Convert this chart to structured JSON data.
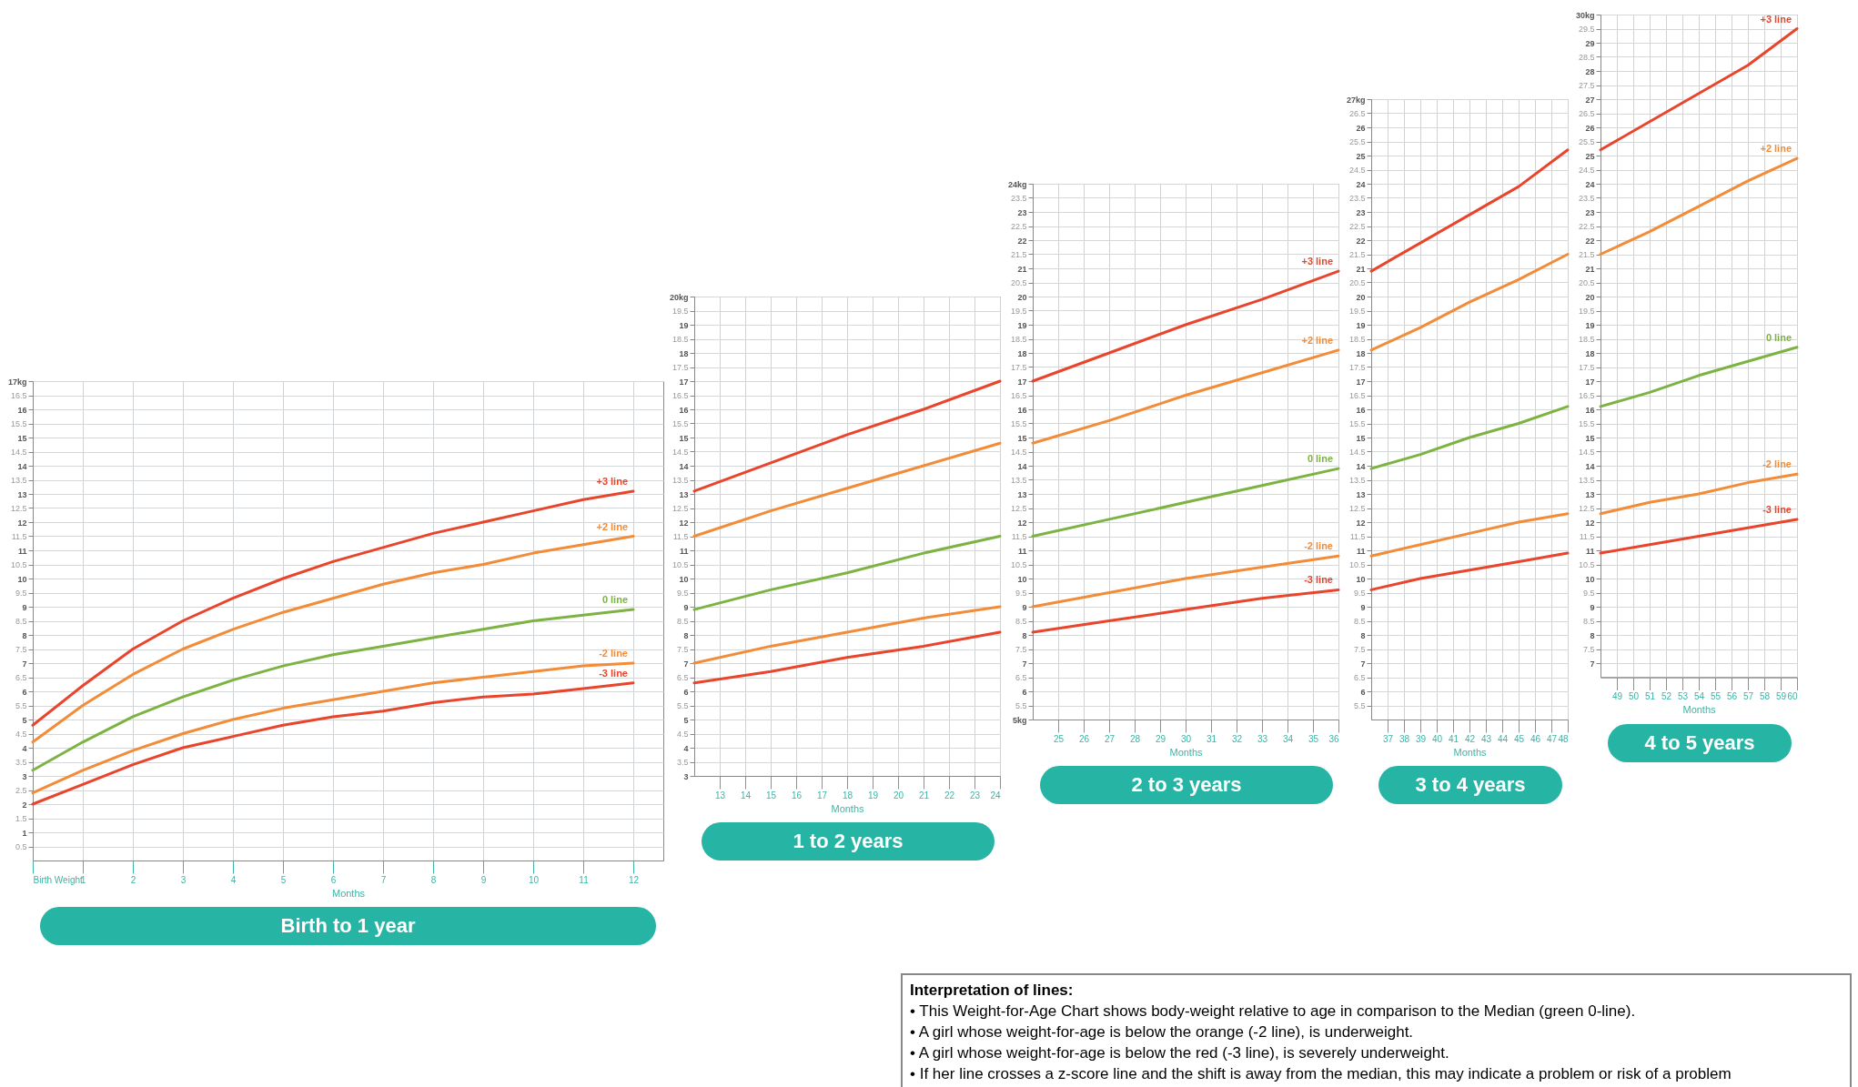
{
  "chart_data": [
    {
      "type": "line",
      "title": "Birth to 1 year",
      "xlabel": "Months",
      "grid": true,
      "line_style": "solid",
      "marker": "none",
      "legend": false,
      "x": [
        0,
        1,
        2,
        3,
        4,
        5,
        6,
        7,
        8,
        9,
        10,
        11,
        12
      ],
      "xlim": [
        0,
        12.6
      ],
      "xticks": [
        {
          "value": 0,
          "label": "Birth Weight"
        },
        1,
        2,
        3,
        4,
        5,
        6,
        7,
        8,
        9,
        10,
        11,
        12
      ],
      "ylim": [
        0,
        17
      ],
      "yticks": [
        0.5,
        1,
        1.5,
        2,
        2.5,
        3,
        3.5,
        4,
        4.5,
        5,
        5.5,
        6,
        6.5,
        7,
        7.5,
        8,
        8.5,
        9,
        9.5,
        10,
        10.5,
        11,
        11.5,
        12,
        12.5,
        13,
        13.5,
        14,
        14.5,
        15,
        15.5,
        16,
        16.5,
        {
          "value": 17,
          "label": "17kg"
        }
      ],
      "series": [
        {
          "name": "+3 line",
          "color": "#e8452c",
          "values": [
            4.8,
            6.2,
            7.5,
            8.5,
            9.3,
            10.0,
            10.6,
            11.1,
            11.6,
            12.0,
            12.4,
            12.8,
            13.1
          ]
        },
        {
          "name": "+2 line",
          "color": "#f28c38",
          "values": [
            4.2,
            5.5,
            6.6,
            7.5,
            8.2,
            8.8,
            9.3,
            9.8,
            10.2,
            10.5,
            10.9,
            11.2,
            11.5
          ]
        },
        {
          "name": "0 line",
          "color": "#7cb342",
          "values": [
            3.2,
            4.2,
            5.1,
            5.8,
            6.4,
            6.9,
            7.3,
            7.6,
            7.9,
            8.2,
            8.5,
            8.7,
            8.9
          ]
        },
        {
          "name": "-2 line",
          "color": "#f28c38",
          "values": [
            2.4,
            3.2,
            3.9,
            4.5,
            5.0,
            5.4,
            5.7,
            6.0,
            6.3,
            6.5,
            6.7,
            6.9,
            7.0
          ]
        },
        {
          "name": "-3 line",
          "color": "#e8452c",
          "values": [
            2.0,
            2.7,
            3.4,
            4.0,
            4.4,
            4.8,
            5.1,
            5.3,
            5.6,
            5.8,
            5.9,
            6.1,
            6.3
          ]
        }
      ]
    },
    {
      "type": "line",
      "title": "1 to 2 years",
      "xlabel": "Months",
      "grid": true,
      "line_style": "solid",
      "marker": "none",
      "legend": false,
      "x": [
        12,
        15,
        18,
        21,
        24
      ],
      "xlim": [
        12,
        24
      ],
      "xticks": [
        13,
        14,
        15,
        16,
        17,
        18,
        19,
        20,
        21,
        22,
        23,
        24
      ],
      "ylim": [
        3,
        20
      ],
      "yticks": [
        3,
        3.5,
        4,
        4.5,
        5,
        5.5,
        6,
        6.5,
        7,
        7.5,
        8,
        8.5,
        9,
        9.5,
        10,
        10.5,
        11,
        11.5,
        12,
        12.5,
        13,
        13.5,
        14,
        14.5,
        15,
        15.5,
        16,
        16.5,
        17,
        17.5,
        18,
        18.5,
        19,
        19.5,
        {
          "value": 20,
          "label": "20kg"
        }
      ],
      "series": [
        {
          "color": "#e8452c",
          "values": [
            13.1,
            14.1,
            15.1,
            16.0,
            17.0
          ]
        },
        {
          "color": "#f28c38",
          "values": [
            11.5,
            12.4,
            13.2,
            14.0,
            14.8
          ]
        },
        {
          "color": "#7cb342",
          "values": [
            8.9,
            9.6,
            10.2,
            10.9,
            11.5
          ]
        },
        {
          "color": "#f28c38",
          "values": [
            7.0,
            7.6,
            8.1,
            8.6,
            9.0
          ]
        },
        {
          "color": "#e8452c",
          "values": [
            6.3,
            6.7,
            7.2,
            7.6,
            8.1
          ]
        }
      ]
    },
    {
      "type": "line",
      "title": "2 to 3 years",
      "xlabel": "Months",
      "grid": true,
      "line_style": "solid",
      "marker": "none",
      "legend": false,
      "x": [
        24,
        27,
        30,
        33,
        36
      ],
      "xlim": [
        24,
        36
      ],
      "xticks": [
        25,
        26,
        27,
        28,
        29,
        30,
        31,
        32,
        33,
        34,
        35,
        36
      ],
      "ylim": [
        5,
        24
      ],
      "yticks": [
        {
          "value": 5,
          "label": "5kg"
        },
        5.5,
        6,
        6.5,
        7,
        7.5,
        8,
        8.5,
        9,
        9.5,
        10,
        10.5,
        11,
        11.5,
        12,
        12.5,
        13,
        13.5,
        14,
        14.5,
        15,
        15.5,
        16,
        16.5,
        17,
        17.5,
        18,
        18.5,
        19,
        19.5,
        20,
        20.5,
        21,
        21.5,
        22,
        22.5,
        23,
        23.5,
        {
          "value": 24,
          "label": "24kg"
        }
      ],
      "series": [
        {
          "name": "+3 line",
          "color": "#e8452c",
          "values": [
            17.0,
            18.0,
            19.0,
            19.9,
            20.9
          ]
        },
        {
          "name": "+2 line",
          "color": "#f28c38",
          "values": [
            14.8,
            15.6,
            16.5,
            17.3,
            18.1
          ]
        },
        {
          "name": "0 line",
          "color": "#7cb342",
          "values": [
            11.5,
            12.1,
            12.7,
            13.3,
            13.9
          ]
        },
        {
          "name": "-2 line",
          "color": "#f28c38",
          "values": [
            9.0,
            9.5,
            10.0,
            10.4,
            10.8
          ]
        },
        {
          "name": "-3 line",
          "color": "#e8452c",
          "values": [
            8.1,
            8.5,
            8.9,
            9.3,
            9.6
          ]
        }
      ]
    },
    {
      "type": "line",
      "title": "3 to 4 years",
      "xlabel": "Months",
      "grid": true,
      "line_style": "solid",
      "marker": "none",
      "legend": false,
      "x": [
        36,
        39,
        42,
        45,
        48
      ],
      "xlim": [
        36,
        48
      ],
      "xticks": [
        37,
        38,
        39,
        40,
        41,
        42,
        43,
        44,
        45,
        46,
        47,
        48
      ],
      "ylim": [
        5,
        27
      ],
      "yticks": [
        5.5,
        6,
        6.5,
        7,
        7.5,
        8,
        8.5,
        9,
        9.5,
        10,
        10.5,
        11,
        11.5,
        12,
        12.5,
        13,
        13.5,
        14,
        14.5,
        15,
        15.5,
        16,
        16.5,
        17,
        17.5,
        18,
        18.5,
        19,
        19.5,
        20,
        20.5,
        21,
        21.5,
        22,
        22.5,
        23,
        23.5,
        24,
        24.5,
        25,
        25.5,
        26,
        26.5,
        {
          "value": 27,
          "label": "27kg"
        }
      ],
      "series": [
        {
          "color": "#e8452c",
          "values": [
            20.9,
            21.9,
            22.9,
            23.9,
            25.2
          ]
        },
        {
          "color": "#f28c38",
          "values": [
            18.1,
            18.9,
            19.8,
            20.6,
            21.5
          ]
        },
        {
          "color": "#7cb342",
          "values": [
            13.9,
            14.4,
            15.0,
            15.5,
            16.1
          ]
        },
        {
          "color": "#f28c38",
          "values": [
            10.8,
            11.2,
            11.6,
            12.0,
            12.3
          ]
        },
        {
          "color": "#e8452c",
          "values": [
            9.6,
            10.0,
            10.3,
            10.6,
            10.9
          ]
        }
      ]
    },
    {
      "type": "line",
      "title": "4 to 5 years",
      "xlabel": "Months",
      "grid": true,
      "line_style": "solid",
      "marker": "none",
      "legend": false,
      "x": [
        48,
        51,
        54,
        57,
        60
      ],
      "xlim": [
        48,
        60
      ],
      "xticks": [
        49,
        50,
        51,
        52,
        53,
        54,
        55,
        56,
        57,
        58,
        59,
        60
      ],
      "ylim": [
        6.5,
        30
      ],
      "yticks": [
        7,
        7.5,
        8,
        8.5,
        9,
        9.5,
        10,
        10.5,
        11,
        11.5,
        12,
        12.5,
        13,
        13.5,
        14,
        14.5,
        15,
        15.5,
        16,
        16.5,
        17,
        17.5,
        18,
        18.5,
        19,
        19.5,
        20,
        20.5,
        21,
        21.5,
        22,
        22.5,
        23,
        23.5,
        24,
        24.5,
        25,
        25.5,
        26,
        26.5,
        27,
        27.5,
        28,
        28.5,
        29,
        29.5,
        {
          "value": 30,
          "label": "30kg"
        }
      ],
      "series": [
        {
          "name": "+3 line",
          "color": "#e8452c",
          "values": [
            25.2,
            26.2,
            27.2,
            28.2,
            29.5
          ]
        },
        {
          "name": "+2 line",
          "color": "#f28c38",
          "values": [
            21.5,
            22.3,
            23.2,
            24.1,
            24.9
          ]
        },
        {
          "name": "0 line",
          "color": "#7cb342",
          "values": [
            16.1,
            16.6,
            17.2,
            17.7,
            18.2
          ]
        },
        {
          "name": "-2 line",
          "color": "#f28c38",
          "values": [
            12.3,
            12.7,
            13.0,
            13.4,
            13.7
          ]
        },
        {
          "name": "-3 line",
          "color": "#e8452c",
          "values": [
            10.9,
            11.2,
            11.5,
            11.8,
            12.1
          ]
        }
      ],
      "annotations": [
        "Interpretation of lines:",
        "• This Weight-for-Age Chart shows body-weight relative to age in comparison to the Median (green 0-line).",
        "• A girl whose weight-for-age is below the orange (-2 line), is underweight.",
        "• A girl whose weight-for-age is below the red (-3 line), is severely underweight.",
        "• If her line crosses a z-score line and the shift is away from the median, this may indicate a problem or risk of a problem"
      ]
    }
  ]
}
